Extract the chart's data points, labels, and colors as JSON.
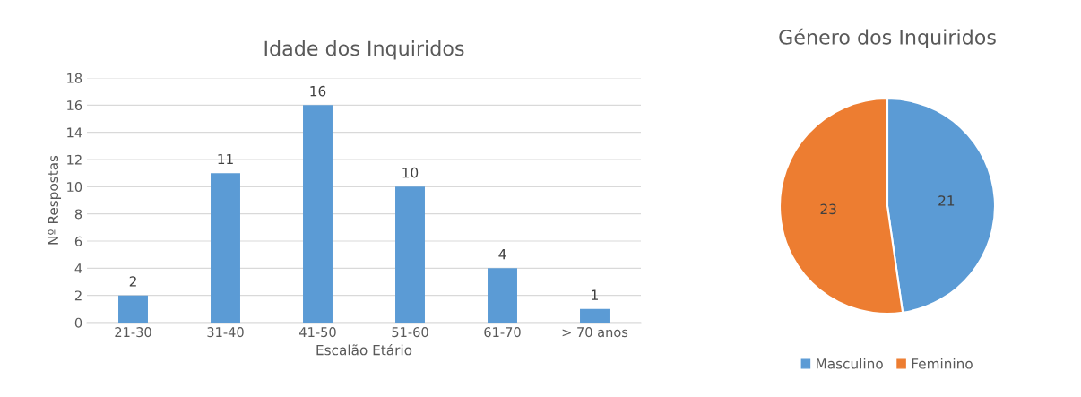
{
  "chart_data": [
    {
      "type": "bar",
      "title": "Idade dos Inquiridos",
      "xlabel": "Escalão Etário",
      "ylabel": "Nº Respostas",
      "categories": [
        "21-30",
        "31-40",
        "41-50",
        "51-60",
        "61-70",
        "> 70 anos"
      ],
      "values": [
        2,
        11,
        16,
        10,
        4,
        1
      ],
      "color": "#5b9bd5",
      "ylim": [
        0,
        18
      ],
      "yticks": [
        0,
        2,
        4,
        6,
        8,
        10,
        12,
        14,
        16,
        18
      ],
      "grid": "y",
      "data_labels": true,
      "legend": false
    },
    {
      "type": "pie",
      "title": "Género dos Inquiridos",
      "categories": [
        "Masculino",
        "Feminino"
      ],
      "values": [
        21,
        23
      ],
      "colors": [
        "#5b9bd5",
        "#ed7d31"
      ],
      "data_labels": true,
      "legend": "bottom"
    }
  ]
}
